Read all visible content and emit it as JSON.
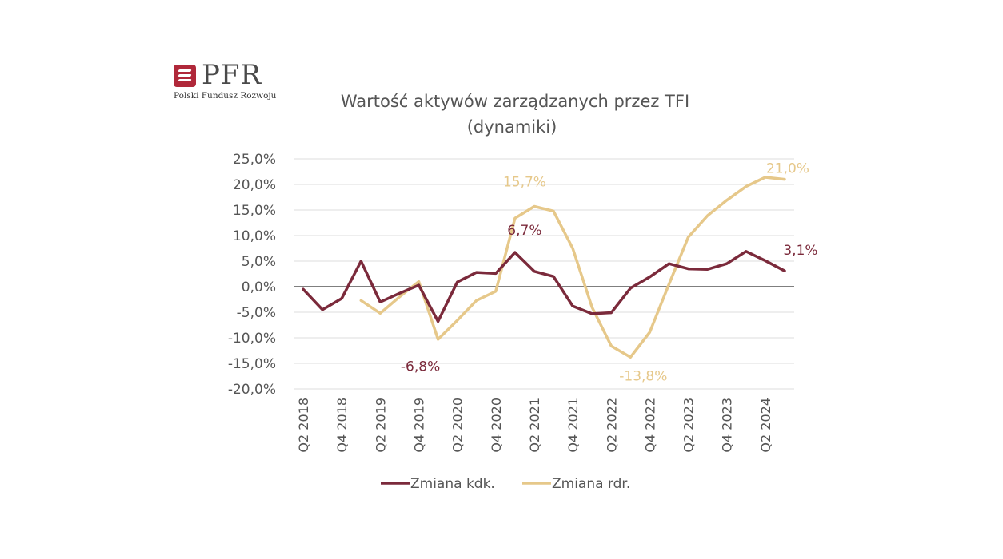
{
  "logo": {
    "brand": "PFR",
    "subtitle": "Polski Fundusz Rozwoju",
    "color": "#b0283a"
  },
  "chart_data": {
    "type": "line",
    "title_line1": "Wartość aktywów zarządzanych przez TFI",
    "title_line2": "(dynamiki)",
    "ylim": [
      -20,
      25
    ],
    "y_ticks": [
      25,
      20,
      15,
      10,
      5,
      0,
      -5,
      -10,
      -15,
      -20
    ],
    "y_tick_labels": [
      "25,0%",
      "20,0%",
      "15,0%",
      "10,0%",
      "5,0%",
      "0,0%",
      "-5,0%",
      "-10,0%",
      "-15,0%",
      "-20,0%"
    ],
    "grid": true,
    "x": [
      "Q2 2018",
      "Q3 2018",
      "Q4 2018",
      "Q1 2019",
      "Q2 2019",
      "Q3 2019",
      "Q4 2019",
      "Q1 2020",
      "Q2 2020",
      "Q3 2020",
      "Q4 2020",
      "Q1 2021",
      "Q2 2021",
      "Q3 2021",
      "Q4 2021",
      "Q1 2022",
      "Q2 2022",
      "Q3 2022",
      "Q4 2022",
      "Q1 2023",
      "Q2 2023",
      "Q3 2023",
      "Q4 2023",
      "Q1 2024",
      "Q2 2024",
      "Q3 2024"
    ],
    "x_tick_labels": [
      "Q2 2018",
      "Q4 2018",
      "Q2 2019",
      "Q4 2019",
      "Q2 2020",
      "Q4 2020",
      "Q2 2021",
      "Q4 2021",
      "Q2 2022",
      "Q4 2022",
      "Q2 2023",
      "Q4 2023",
      "Q2 2024"
    ],
    "legend_position": "bottom",
    "series": [
      {
        "name": "Zmiana kdk.",
        "color": "#7b2a3b",
        "values": [
          -0.5,
          -4.5,
          -2.3,
          5.0,
          -3.0,
          -1.3,
          0.3,
          -6.8,
          0.9,
          2.8,
          2.6,
          6.7,
          3.0,
          2.0,
          -3.8,
          -5.3,
          -5.1,
          -0.3,
          1.9,
          4.5,
          3.5,
          3.4,
          4.5,
          6.9,
          5.1,
          3.1
        ]
      },
      {
        "name": "Zmiana rdr.",
        "color": "#e6c88a",
        "values": [
          null,
          null,
          null,
          -2.7,
          -5.2,
          -2.0,
          1.0,
          -10.3,
          -6.6,
          -2.7,
          -0.9,
          13.4,
          15.7,
          14.8,
          7.5,
          -4.0,
          -11.6,
          -13.8,
          -8.9,
          0.5,
          9.7,
          13.9,
          16.9,
          19.6,
          21.4,
          21.0
        ]
      }
    ],
    "annotations": [
      {
        "label": "-6,8%",
        "series": 0,
        "x": "Q1 2020",
        "color": "#7b2a3b"
      },
      {
        "label": "6,7%",
        "series": 0,
        "x": "Q1 2021",
        "color": "#7b2a3b"
      },
      {
        "label": "3,1%",
        "series": 0,
        "x": "Q3 2024",
        "color": "#7b2a3b"
      },
      {
        "label": "15,7%",
        "series": 1,
        "x": "Q2 2021",
        "color": "#e6c88a"
      },
      {
        "label": "-13,8%",
        "series": 1,
        "x": "Q3 2022",
        "color": "#e6c88a"
      },
      {
        "label": "21,0%",
        "series": 1,
        "x": "Q3 2024",
        "color": "#e6c88a"
      }
    ]
  }
}
